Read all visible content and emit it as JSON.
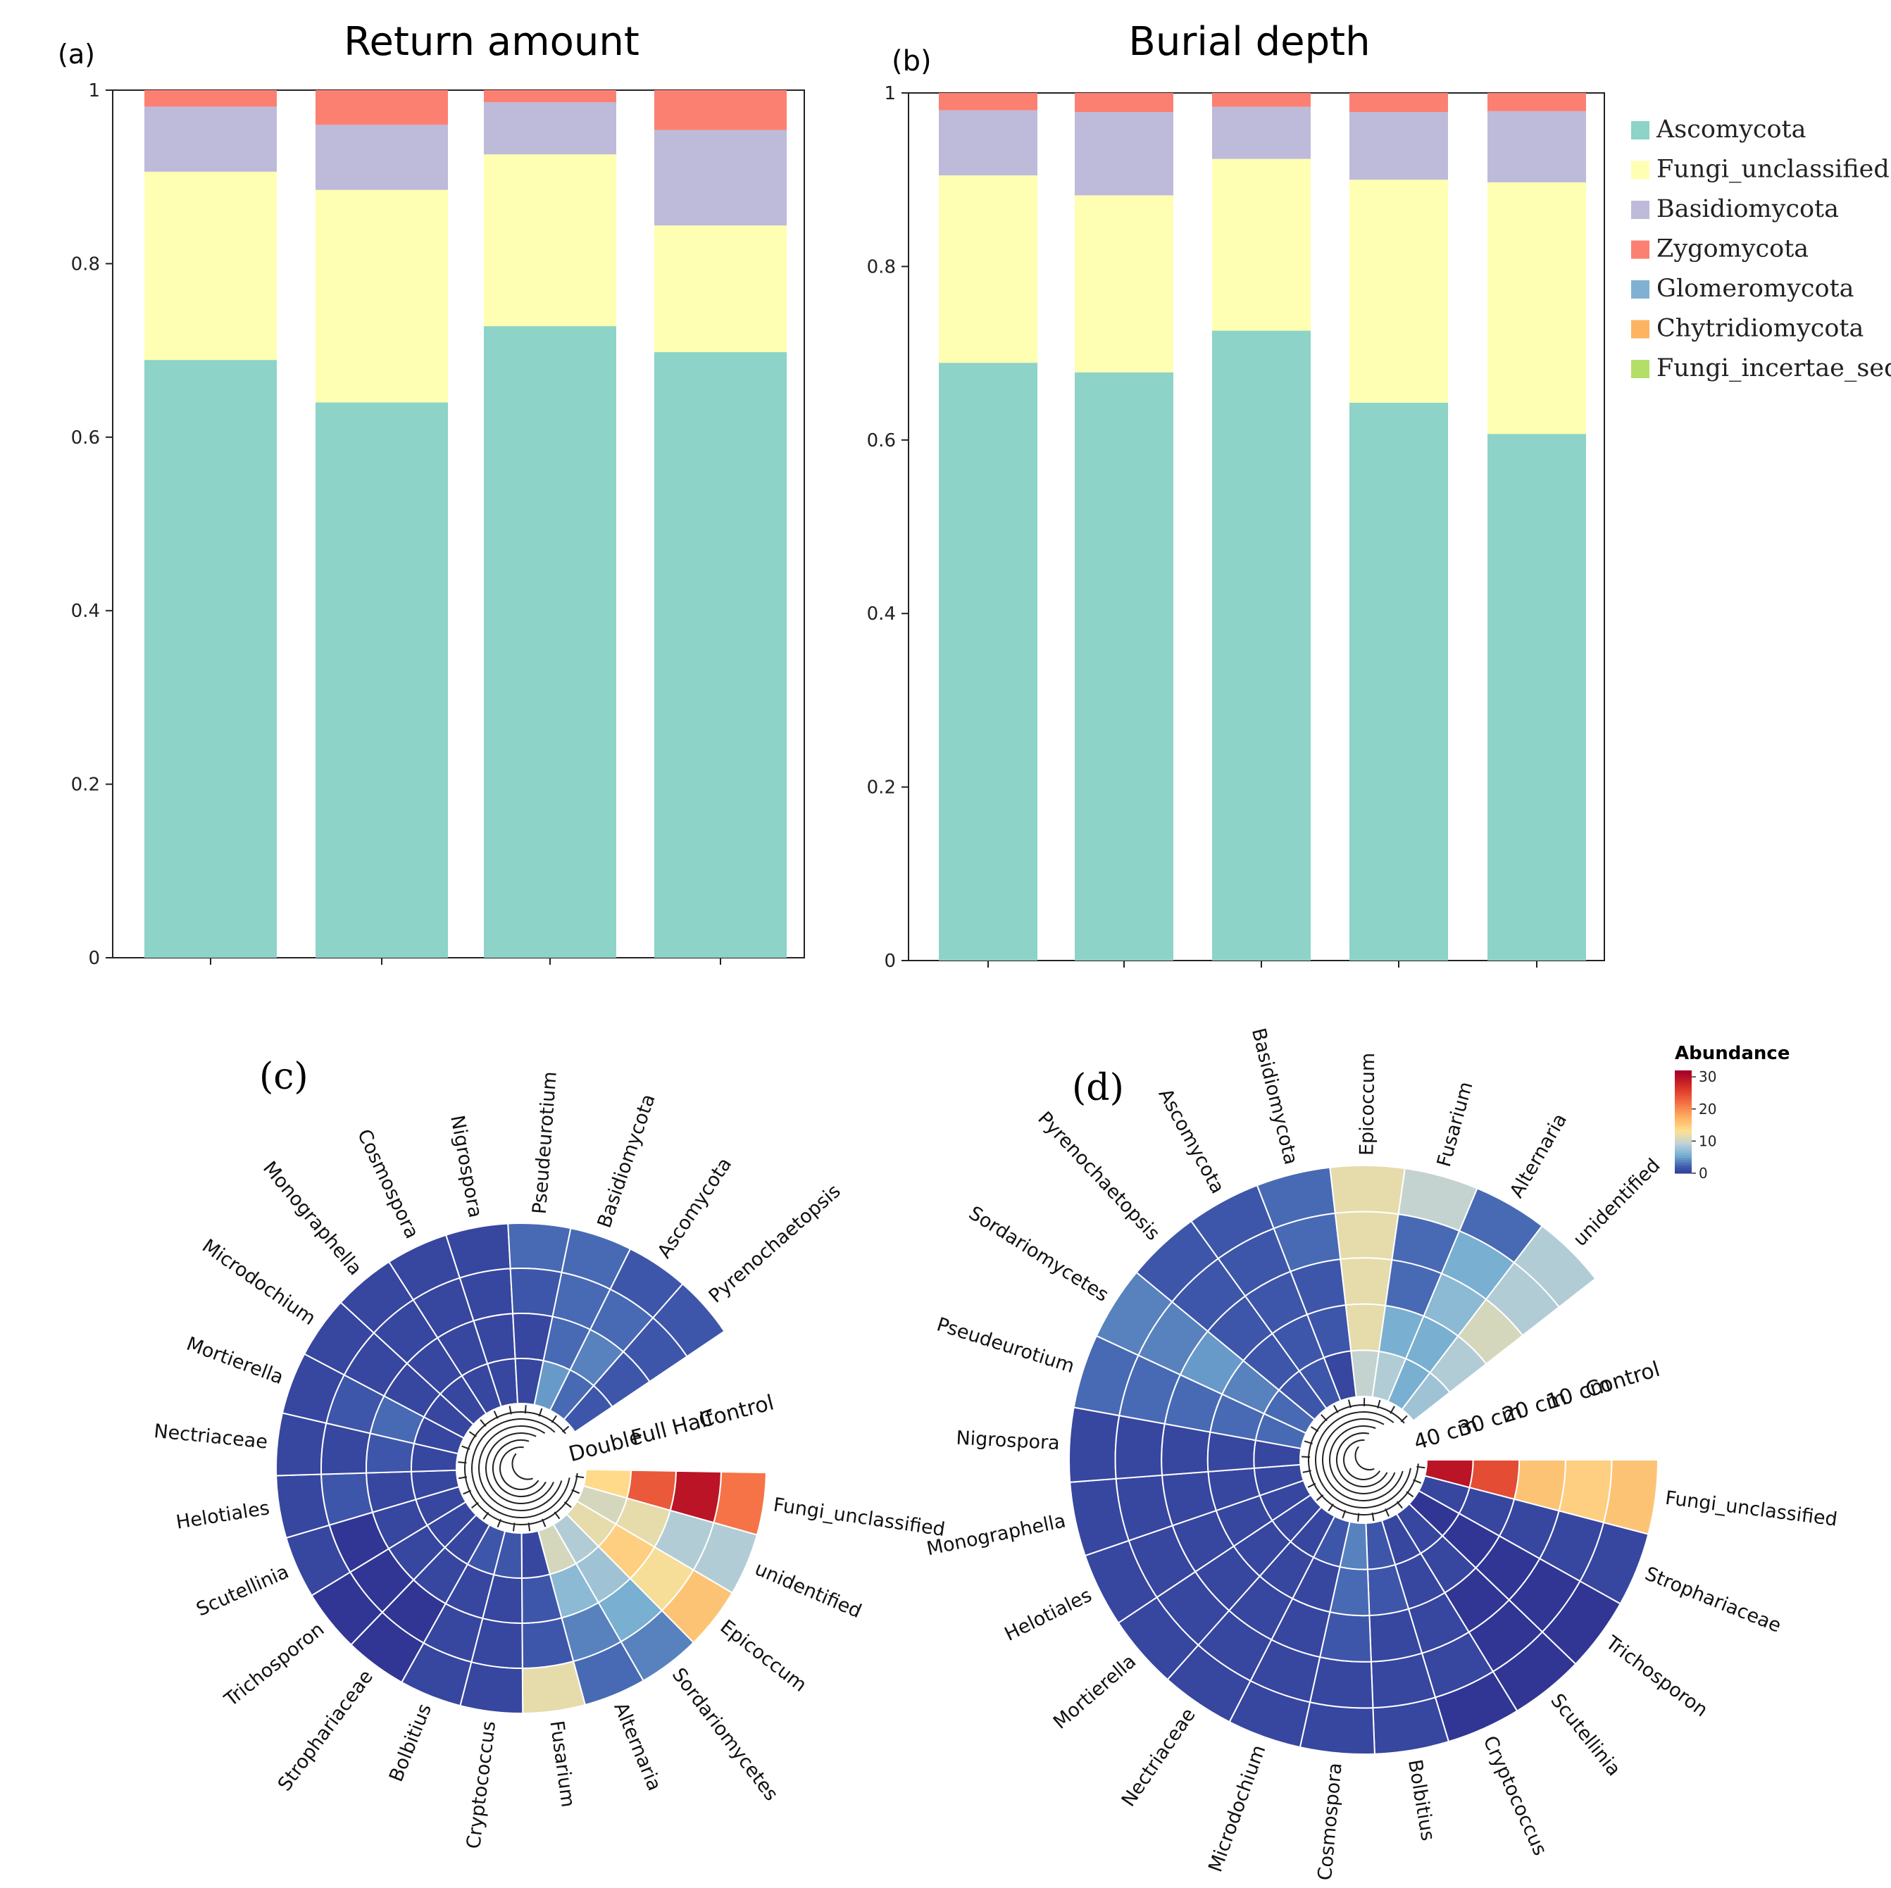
{
  "panels": {
    "a": {
      "label": "(a)"
    },
    "b": {
      "label": "(b)"
    },
    "c": {
      "label": "(c)"
    },
    "d": {
      "label": "(d)"
    }
  },
  "colors": {
    "Ascomycota": "#8dd3c7",
    "Fungi_unclassified": "#ffffb3",
    "Basidiomycota": "#bebada",
    "Zygomycota": "#fb8072",
    "Glomeromycota": "#80b1d3",
    "Chytridiomycota": "#fdb462",
    "Fungi_incertae_sedis": "#b3de69"
  },
  "colorbar": {
    "title": "Abundance",
    "ticks": [
      "30",
      "20",
      "10",
      "0"
    ],
    "max": 32
  },
  "chart_data": [
    {
      "id": "a",
      "type": "bar",
      "stacked": true,
      "title": "Return amount",
      "ylim": [
        0,
        1
      ],
      "yticks": [
        "0",
        "0.2",
        "0.4",
        "0.6",
        "0.8",
        "1"
      ],
      "n_bars": 4,
      "series": [
        {
          "name": "Ascomycota",
          "values": [
            0.689,
            0.64,
            0.728,
            0.698
          ]
        },
        {
          "name": "Fungi_unclassified",
          "values": [
            0.217,
            0.245,
            0.198,
            0.146
          ]
        },
        {
          "name": "Basidiomycota",
          "values": [
            0.075,
            0.075,
            0.06,
            0.11
          ]
        },
        {
          "name": "Zygomycota",
          "values": [
            0.019,
            0.04,
            0.014,
            0.046
          ]
        },
        {
          "name": "Glomeromycota",
          "values": [
            0,
            0,
            0,
            0
          ]
        },
        {
          "name": "Chytridiomycota",
          "values": [
            0,
            0,
            0,
            0
          ]
        },
        {
          "name": "Fungi_incertae_sedis",
          "values": [
            0,
            0,
            0,
            0
          ]
        }
      ]
    },
    {
      "id": "b",
      "type": "bar",
      "stacked": true,
      "title": "Burial depth",
      "ylim": [
        0,
        1
      ],
      "yticks": [
        "0",
        "0.2",
        "0.4",
        "0.6",
        "0.8",
        "1"
      ],
      "n_bars": 5,
      "legend": "right",
      "series": [
        {
          "name": "Ascomycota",
          "values": [
            0.689,
            0.678,
            0.726,
            0.643,
            0.607
          ]
        },
        {
          "name": "Fungi_unclassified",
          "values": [
            0.216,
            0.204,
            0.198,
            0.257,
            0.29
          ]
        },
        {
          "name": "Basidiomycota",
          "values": [
            0.075,
            0.096,
            0.06,
            0.078,
            0.082
          ]
        },
        {
          "name": "Zygomycota",
          "values": [
            0.02,
            0.022,
            0.016,
            0.022,
            0.021
          ]
        },
        {
          "name": "Glomeromycota",
          "values": [
            0,
            0,
            0,
            0,
            0
          ]
        },
        {
          "name": "Chytridiomycota",
          "values": [
            0,
            0,
            0,
            0,
            0
          ]
        },
        {
          "name": "Fungi_incertae_sedis",
          "values": [
            0,
            0,
            0,
            0,
            0
          ]
        }
      ]
    },
    {
      "id": "c",
      "type": "heatmap",
      "layout": "circular",
      "rings": [
        "Control",
        "Half",
        "Full",
        "Double"
      ],
      "taxa": [
        {
          "name": "Fungi_unclassified",
          "values": [
            22,
            30,
            24,
            14
          ]
        },
        {
          "name": "unidentified",
          "values": [
            9,
            9,
            12,
            11
          ]
        },
        {
          "name": "Epicoccum",
          "values": [
            16,
            13,
            15,
            12
          ]
        },
        {
          "name": "Sordariomycetes",
          "values": [
            4,
            6,
            8,
            9
          ]
        },
        {
          "name": "Alternaria",
          "values": [
            3,
            4,
            7,
            11
          ]
        },
        {
          "name": "Fusarium",
          "values": [
            12,
            2,
            2,
            1
          ]
        },
        {
          "name": "Cryptococcus",
          "values": [
            1,
            1,
            1,
            2
          ]
        },
        {
          "name": "Bolbitius",
          "values": [
            1,
            1,
            1,
            2
          ]
        },
        {
          "name": "Strophariaceae",
          "values": [
            0,
            0,
            1,
            1
          ]
        },
        {
          "name": "Trichosporon",
          "values": [
            0,
            0,
            1,
            1
          ]
        },
        {
          "name": "Scutellinia",
          "values": [
            1,
            0,
            1,
            1
          ]
        },
        {
          "name": "Helotiales",
          "values": [
            1,
            2,
            1,
            1
          ]
        },
        {
          "name": "Nectriaceae",
          "values": [
            1,
            1,
            2,
            1
          ]
        },
        {
          "name": "Mortierella",
          "values": [
            1,
            2,
            3,
            1
          ]
        },
        {
          "name": "Microdochium",
          "values": [
            1,
            1,
            1,
            1
          ]
        },
        {
          "name": "Monographella",
          "values": [
            1,
            1,
            1,
            1
          ]
        },
        {
          "name": "Cosmospora",
          "values": [
            1,
            1,
            1,
            1
          ]
        },
        {
          "name": "Nigrospora",
          "values": [
            1,
            1,
            1,
            1
          ]
        },
        {
          "name": "Pseudeurotium",
          "values": [
            3,
            2,
            1,
            1
          ]
        },
        {
          "name": "Basidiomycota",
          "values": [
            3,
            3,
            3,
            5
          ]
        },
        {
          "name": "Ascomycota",
          "values": [
            2,
            3,
            4,
            3
          ]
        },
        {
          "name": "Pyrenochaetopsis",
          "values": [
            2,
            2,
            2,
            2
          ]
        }
      ]
    },
    {
      "id": "d",
      "type": "heatmap",
      "layout": "circular",
      "rings": [
        "Control",
        "10 cm",
        "20 cm",
        "30 cm",
        "40 cm"
      ],
      "taxa": [
        {
          "name": "Fungi_unclassified",
          "values": [
            16,
            15,
            16,
            25,
            30
          ]
        },
        {
          "name": "Strophariaceae",
          "values": [
            1,
            1,
            1,
            1,
            1
          ]
        },
        {
          "name": "Trichosporon",
          "values": [
            0,
            0,
            0,
            0,
            0
          ]
        },
        {
          "name": "Scutellinia",
          "values": [
            0,
            0,
            0,
            1,
            1
          ]
        },
        {
          "name": "Cryptococcus",
          "values": [
            0,
            1,
            1,
            1,
            1
          ]
        },
        {
          "name": "Bolbitius",
          "values": [
            1,
            1,
            1,
            2,
            2
          ]
        },
        {
          "name": "Cosmospora",
          "values": [
            1,
            1,
            2,
            3,
            4
          ]
        },
        {
          "name": "Microdochium",
          "values": [
            1,
            1,
            1,
            1,
            2
          ]
        },
        {
          "name": "Nectriaceae",
          "values": [
            1,
            1,
            1,
            1,
            1
          ]
        },
        {
          "name": "Mortierella",
          "values": [
            1,
            1,
            1,
            1,
            1
          ]
        },
        {
          "name": "Helotiales",
          "values": [
            1,
            1,
            1,
            1,
            1
          ]
        },
        {
          "name": "Monographella",
          "values": [
            1,
            1,
            1,
            1,
            1
          ]
        },
        {
          "name": "Nigrospora",
          "values": [
            1,
            1,
            1,
            1,
            1
          ]
        },
        {
          "name": "Pseudeurotium",
          "values": [
            3,
            3,
            3,
            3,
            3
          ]
        },
        {
          "name": "Sordariomycetes",
          "values": [
            4,
            4,
            5,
            4,
            3
          ]
        },
        {
          "name": "Pyrenochaetopsis",
          "values": [
            2,
            2,
            2,
            2,
            2
          ]
        },
        {
          "name": "Ascomycota",
          "values": [
            2,
            2,
            2,
            2,
            2
          ]
        },
        {
          "name": "Basidiomycota",
          "values": [
            3,
            3,
            2,
            2,
            1
          ]
        },
        {
          "name": "Epicoccum",
          "values": [
            12,
            12,
            12,
            12,
            10
          ]
        },
        {
          "name": "Fusarium",
          "values": [
            10,
            3,
            3,
            6,
            9
          ]
        },
        {
          "name": "Alternaria",
          "values": [
            3,
            6,
            7,
            6,
            6
          ]
        },
        {
          "name": "unidentified",
          "values": [
            9,
            9,
            11,
            9,
            8
          ]
        }
      ]
    }
  ]
}
